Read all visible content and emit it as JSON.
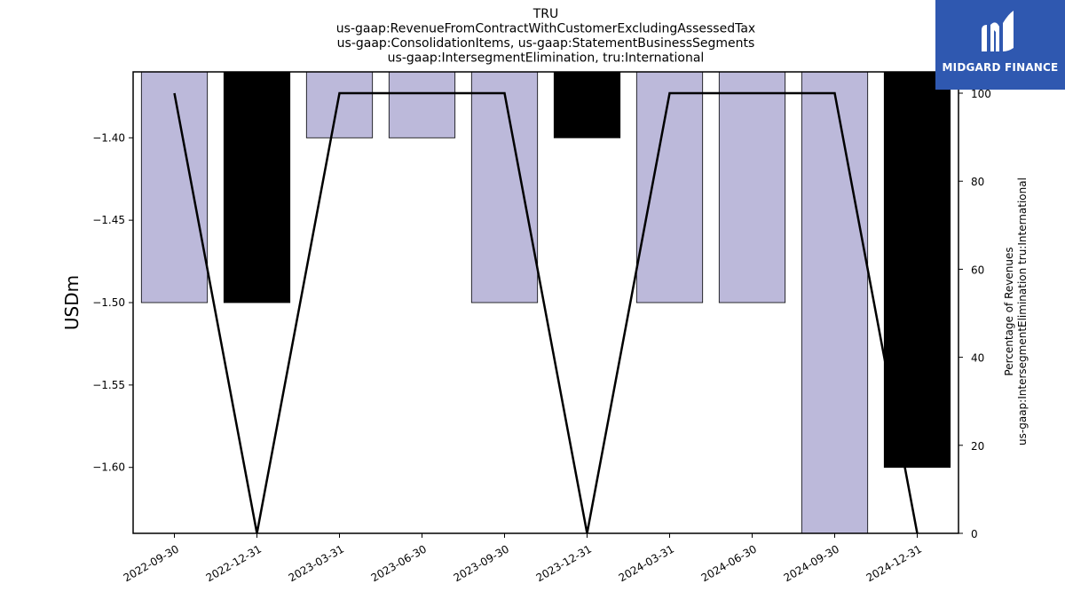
{
  "title_lines": [
    "TRU",
    "us-gaap:RevenueFromContractWithCustomerExcludingAssessedTax",
    "us-gaap:ConsolidationItems, us-gaap:StatementBusinessSegments",
    "us-gaap:IntersegmentElimination, tru:International"
  ],
  "logo": {
    "text": "MIDGARD FINANCE",
    "color": "#2f58b0"
  },
  "chart_data": {
    "type": "bar",
    "categories": [
      "2022-09-30",
      "2022-12-31",
      "2023-03-31",
      "2023-06-30",
      "2023-09-30",
      "2023-12-31",
      "2024-03-31",
      "2024-06-30",
      "2024-09-30",
      "2024-12-31"
    ],
    "values": [
      -1.5,
      -1.5,
      -1.4,
      -1.4,
      -1.5,
      -1.4,
      -1.5,
      -1.5,
      -1.64,
      -1.6
    ],
    "bar_colors": [
      "#bcb9da",
      "#000000",
      "#bcb9da",
      "#bcb9da",
      "#bcb9da",
      "#000000",
      "#bcb9da",
      "#bcb9da",
      "#bcb9da",
      "#000000"
    ],
    "ylabel": "USDm",
    "ylim": [
      -1.64,
      -1.36
    ],
    "yticks": [
      -1.6,
      -1.55,
      -1.5,
      -1.45,
      -1.4
    ],
    "ytick_labels": [
      "−1.60",
      "−1.55",
      "−1.50",
      "−1.45",
      "−1.40"
    ],
    "line_series": {
      "values": [
        100,
        0,
        100,
        100,
        100,
        0,
        100,
        100,
        100,
        0
      ],
      "color": "#000000",
      "ylabel_lines": [
        "Percentage of Revenues",
        "us-gaap:IntersegmentElimination tru:International"
      ],
      "ylim": [
        0,
        100
      ],
      "yticks": [
        0,
        20,
        40,
        60,
        80,
        100
      ]
    },
    "grid": false
  }
}
